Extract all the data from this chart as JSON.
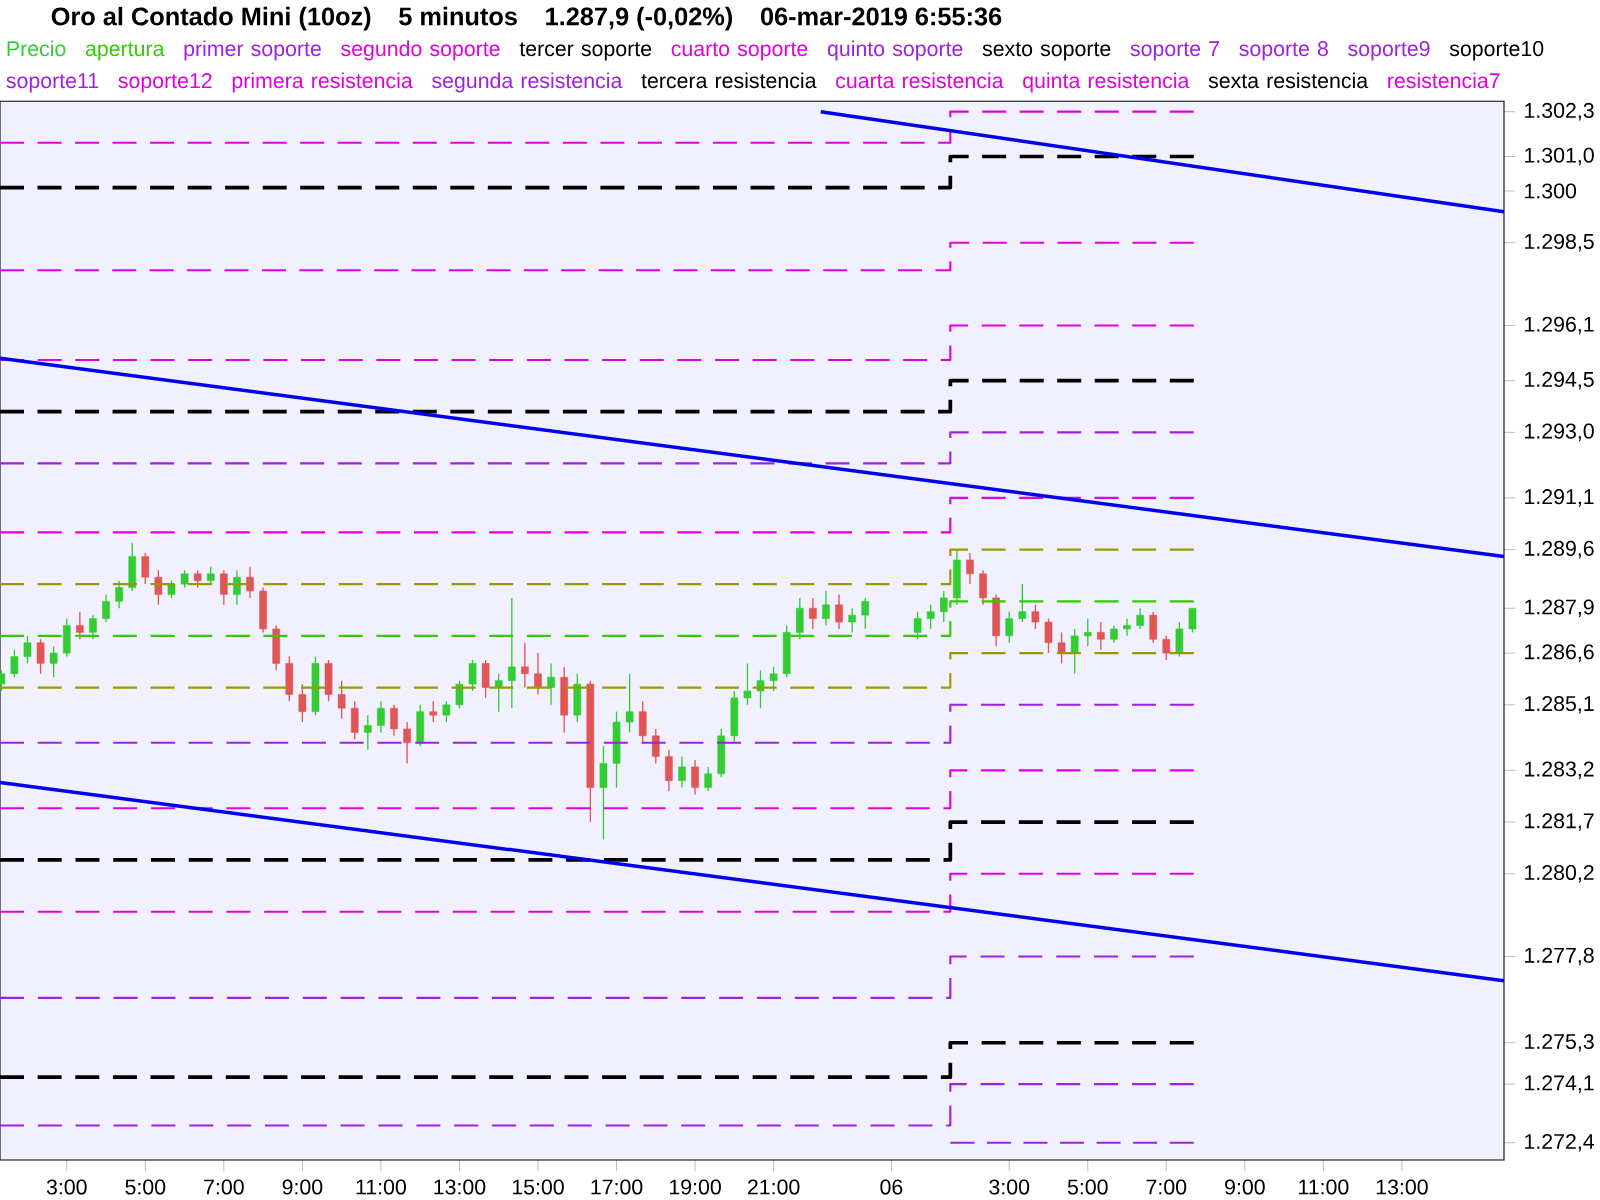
{
  "chart_data": {
    "type": "candlestick",
    "title": "Oro al Contado Mini (10oz)",
    "subtitle": "5 minutos",
    "annotations": [
      "1.287,9 (-0,02%)",
      "06-mar-2019 6:55:36"
    ],
    "xlim": [
      "2019-03-05T01:18",
      "2019-03-06T15:36"
    ],
    "ylim": [
      1271.9,
      1302.6
    ],
    "xticks": [
      {
        "value": "2019-03-05T03:00",
        "label": "3:00"
      },
      {
        "value": "2019-03-05T05:00",
        "label": "5:00"
      },
      {
        "value": "2019-03-05T07:00",
        "label": "7:00"
      },
      {
        "value": "2019-03-05T09:00",
        "label": "9:00"
      },
      {
        "value": "2019-03-05T11:00",
        "label": "11:00"
      },
      {
        "value": "2019-03-05T13:00",
        "label": "13:00"
      },
      {
        "value": "2019-03-05T15:00",
        "label": "15:00"
      },
      {
        "value": "2019-03-05T17:00",
        "label": "17:00"
      },
      {
        "value": "2019-03-05T19:00",
        "label": "19:00"
      },
      {
        "value": "2019-03-05T21:00",
        "label": "21:00"
      },
      {
        "value": "2019-03-06T00:00",
        "label": "06"
      },
      {
        "value": "2019-03-06T03:00",
        "label": "3:00"
      },
      {
        "value": "2019-03-06T05:00",
        "label": "5:00"
      },
      {
        "value": "2019-03-06T07:00",
        "label": "7:00"
      },
      {
        "value": "2019-03-06T09:00",
        "label": "9:00"
      },
      {
        "value": "2019-03-06T11:00",
        "label": "11:00"
      },
      {
        "value": "2019-03-06T13:00",
        "label": "13:00"
      }
    ],
    "yticks": [
      {
        "value": 1302.3,
        "label": "1.302,3"
      },
      {
        "value": 1301.0,
        "label": "1.301,0"
      },
      {
        "value": 1300,
        "label": "1.300"
      },
      {
        "value": 1298.5,
        "label": "1.298,5"
      },
      {
        "value": 1296.1,
        "label": "1.296,1"
      },
      {
        "value": 1294.5,
        "label": "1.294,5"
      },
      {
        "value": 1293.0,
        "label": "1.293,0"
      },
      {
        "value": 1291.1,
        "label": "1.291,1"
      },
      {
        "value": 1289.6,
        "label": "1.289,6"
      },
      {
        "value": 1287.9,
        "label": "1.287,9"
      },
      {
        "value": 1286.6,
        "label": "1.286,6"
      },
      {
        "value": 1285.1,
        "label": "1.285,1"
      },
      {
        "value": 1283.2,
        "label": "1.283,2"
      },
      {
        "value": 1281.7,
        "label": "1.281,7"
      },
      {
        "value": 1280.2,
        "label": "1.280,2"
      },
      {
        "value": 1277.8,
        "label": "1.277,8"
      },
      {
        "value": 1275.3,
        "label": "1.275,3"
      },
      {
        "value": 1274.1,
        "label": "1.274,1"
      },
      {
        "value": 1272.4,
        "label": "1.272,4"
      }
    ],
    "legend": "top",
    "marker": "none",
    "series": [
      {
        "name": "Precio",
        "color": "#33cc33",
        "colors": [
          "#33cc33",
          "#33cc33",
          "#33cc33",
          "#e05555",
          "#33cc33",
          "#33cc33",
          "#e05555",
          "#33cc33",
          "#33cc33",
          "#33cc33",
          "#33cc33",
          "#e05555",
          "#e05555",
          "#33cc33",
          "#33cc33",
          "#e05555",
          "#33cc33",
          "#e05555",
          "#33cc33",
          "#e05555",
          "#e05555",
          "#e05555",
          "#e05555",
          "#e05555",
          "#33cc33",
          "#e05555",
          "#e05555",
          "#e05555",
          "#33cc33",
          "#33cc33",
          "#e05555",
          "#e05555",
          "#33cc33",
          "#e05555",
          "#33cc33",
          "#33cc33",
          "#33cc33",
          "#e05555",
          "#33cc33",
          "#33cc33",
          "#e05555",
          "#e05555",
          "#33cc33",
          "#e05555",
          "#33cc33",
          "#e05555",
          "#33cc33",
          "#33cc33",
          "#33cc33",
          "#e05555",
          "#e05555",
          "#e05555",
          "#33cc33",
          "#e05555",
          "#33cc33",
          "#33cc33",
          "#33cc33",
          "#33cc33",
          "#33cc33",
          "#33cc33",
          "#33cc33",
          "#33cc33",
          "#e05555",
          "#33cc33",
          "#e05555",
          "#33cc33",
          "#33cc33",
          "#33cc33",
          "#33cc33",
          "#33cc33",
          "#33cc33",
          "#e05555",
          "#e05555",
          "#e05555",
          "#33cc33",
          "#33cc33",
          "#e05555",
          "#e05555",
          "#e05555",
          "#33cc33",
          "#33cc33",
          "#e05555",
          "#33cc33",
          "#33cc33",
          "#33cc33",
          "#e05555",
          "#e05555",
          "#33cc33",
          "#33cc33"
        ],
        "x": [
          "2019-03-05T01:20",
          "2019-03-05T01:40",
          "2019-03-05T02:00",
          "2019-03-05T02:20",
          "2019-03-05T02:40",
          "2019-03-05T03:00",
          "2019-03-05T03:20",
          "2019-03-05T03:40",
          "2019-03-05T04:00",
          "2019-03-05T04:20",
          "2019-03-05T04:40",
          "2019-03-05T05:00",
          "2019-03-05T05:20",
          "2019-03-05T05:40",
          "2019-03-05T06:00",
          "2019-03-05T06:20",
          "2019-03-05T06:40",
          "2019-03-05T07:00",
          "2019-03-05T07:20",
          "2019-03-05T07:40",
          "2019-03-05T08:00",
          "2019-03-05T08:20",
          "2019-03-05T08:40",
          "2019-03-05T09:00",
          "2019-03-05T09:20",
          "2019-03-05T09:40",
          "2019-03-05T10:00",
          "2019-03-05T10:20",
          "2019-03-05T10:40",
          "2019-03-05T11:00",
          "2019-03-05T11:20",
          "2019-03-05T11:40",
          "2019-03-05T12:00",
          "2019-03-05T12:20",
          "2019-03-05T12:40",
          "2019-03-05T13:00",
          "2019-03-05T13:20",
          "2019-03-05T13:40",
          "2019-03-05T14:00",
          "2019-03-05T14:20",
          "2019-03-05T14:40",
          "2019-03-05T15:00",
          "2019-03-05T15:20",
          "2019-03-05T15:40",
          "2019-03-05T16:00",
          "2019-03-05T16:20",
          "2019-03-05T16:40",
          "2019-03-05T17:00",
          "2019-03-05T17:20",
          "2019-03-05T17:40",
          "2019-03-05T18:00",
          "2019-03-05T18:20",
          "2019-03-05T18:40",
          "2019-03-05T19:00",
          "2019-03-05T19:20",
          "2019-03-05T19:40",
          "2019-03-05T20:00",
          "2019-03-05T20:20",
          "2019-03-05T20:40",
          "2019-03-05T21:00",
          "2019-03-05T21:20",
          "2019-03-05T21:40",
          "2019-03-05T22:00",
          "2019-03-05T22:20",
          "2019-03-05T22:40",
          "2019-03-05T23:00",
          "2019-03-05T23:20",
          "2019-03-06T00:40",
          "2019-03-06T01:00",
          "2019-03-06T01:20",
          "2019-03-06T01:40",
          "2019-03-06T02:00",
          "2019-03-06T02:20",
          "2019-03-06T02:40",
          "2019-03-06T03:00",
          "2019-03-06T03:20",
          "2019-03-06T03:40",
          "2019-03-06T04:00",
          "2019-03-06T04:20",
          "2019-03-06T04:40",
          "2019-03-06T05:00",
          "2019-03-06T05:20",
          "2019-03-06T05:40",
          "2019-03-06T06:00",
          "2019-03-06T06:20",
          "2019-03-06T06:40",
          "2019-03-06T07:00",
          "2019-03-06T07:20",
          "2019-03-06T07:40"
        ],
        "ohlc": [
          [
            1285.7,
            1286.1,
            1285.5,
            1286.0
          ],
          [
            1286.0,
            1286.7,
            1285.9,
            1286.5
          ],
          [
            1286.5,
            1287.1,
            1286.3,
            1286.9
          ],
          [
            1286.9,
            1287.0,
            1286.0,
            1286.3
          ],
          [
            1286.3,
            1286.8,
            1285.9,
            1286.6
          ],
          [
            1286.6,
            1287.6,
            1286.5,
            1287.4
          ],
          [
            1287.4,
            1287.8,
            1287.0,
            1287.2
          ],
          [
            1287.2,
            1287.7,
            1287.0,
            1287.6
          ],
          [
            1287.6,
            1288.3,
            1287.5,
            1288.1
          ],
          [
            1288.1,
            1288.7,
            1287.9,
            1288.5
          ],
          [
            1288.5,
            1289.8,
            1288.4,
            1289.4
          ],
          [
            1289.4,
            1289.5,
            1288.6,
            1288.8
          ],
          [
            1288.8,
            1289.0,
            1288.0,
            1288.3
          ],
          [
            1288.3,
            1288.7,
            1288.2,
            1288.6
          ],
          [
            1288.6,
            1289.0,
            1288.5,
            1288.9
          ],
          [
            1288.9,
            1289.0,
            1288.5,
            1288.7
          ],
          [
            1288.7,
            1289.1,
            1288.6,
            1288.9
          ],
          [
            1288.9,
            1289.0,
            1288.0,
            1288.3
          ],
          [
            1288.3,
            1289.0,
            1288.0,
            1288.8
          ],
          [
            1288.8,
            1289.1,
            1288.2,
            1288.4
          ],
          [
            1288.4,
            1288.5,
            1287.2,
            1287.3
          ],
          [
            1287.3,
            1287.4,
            1286.1,
            1286.3
          ],
          [
            1286.3,
            1286.5,
            1285.2,
            1285.4
          ],
          [
            1285.4,
            1285.7,
            1284.6,
            1284.9
          ],
          [
            1284.9,
            1286.5,
            1284.8,
            1286.3
          ],
          [
            1286.3,
            1286.4,
            1285.2,
            1285.4
          ],
          [
            1285.4,
            1285.8,
            1284.7,
            1285.0
          ],
          [
            1285.0,
            1285.2,
            1284.1,
            1284.3
          ],
          [
            1284.3,
            1284.8,
            1283.8,
            1284.5
          ],
          [
            1284.5,
            1285.2,
            1284.3,
            1285.0
          ],
          [
            1285.0,
            1285.1,
            1284.2,
            1284.4
          ],
          [
            1284.4,
            1284.6,
            1283.4,
            1284.0
          ],
          [
            1284.0,
            1285.1,
            1283.9,
            1284.9
          ],
          [
            1284.9,
            1285.2,
            1284.6,
            1284.8
          ],
          [
            1284.8,
            1285.2,
            1284.6,
            1285.1
          ],
          [
            1285.1,
            1285.8,
            1285.0,
            1285.7
          ],
          [
            1285.7,
            1286.4,
            1285.5,
            1286.3
          ],
          [
            1286.3,
            1286.4,
            1285.3,
            1285.6
          ],
          [
            1285.6,
            1286.0,
            1284.9,
            1285.8
          ],
          [
            1285.8,
            1288.2,
            1285.0,
            1286.2
          ],
          [
            1286.2,
            1286.9,
            1285.6,
            1286.0
          ],
          [
            1286.0,
            1286.6,
            1285.4,
            1285.6
          ],
          [
            1285.6,
            1286.3,
            1285.1,
            1285.9
          ],
          [
            1285.9,
            1286.2,
            1284.3,
            1284.8
          ],
          [
            1284.8,
            1286.0,
            1284.6,
            1285.7
          ],
          [
            1285.7,
            1285.8,
            1281.7,
            1282.7
          ],
          [
            1282.7,
            1283.9,
            1281.2,
            1283.4
          ],
          [
            1283.4,
            1284.9,
            1282.7,
            1284.6
          ],
          [
            1284.6,
            1286.0,
            1284.3,
            1284.9
          ],
          [
            1284.9,
            1285.2,
            1284.0,
            1284.2
          ],
          [
            1284.2,
            1284.4,
            1283.4,
            1283.6
          ],
          [
            1283.6,
            1283.8,
            1282.6,
            1282.9
          ],
          [
            1282.9,
            1283.6,
            1282.7,
            1283.3
          ],
          [
            1283.3,
            1283.5,
            1282.5,
            1282.7
          ],
          [
            1282.7,
            1283.3,
            1282.6,
            1283.1
          ],
          [
            1283.1,
            1284.4,
            1283.0,
            1284.2
          ],
          [
            1284.2,
            1285.5,
            1284.0,
            1285.3
          ],
          [
            1285.3,
            1286.3,
            1285.1,
            1285.5
          ],
          [
            1285.5,
            1286.1,
            1285.0,
            1285.8
          ],
          [
            1285.8,
            1286.2,
            1285.5,
            1286.0
          ],
          [
            1286.0,
            1287.4,
            1285.9,
            1287.2
          ],
          [
            1287.2,
            1288.2,
            1287.0,
            1287.9
          ],
          [
            1287.9,
            1288.2,
            1287.3,
            1287.6
          ],
          [
            1287.6,
            1288.4,
            1287.4,
            1288.0
          ],
          [
            1288.0,
            1288.3,
            1287.3,
            1287.5
          ],
          [
            1287.5,
            1287.9,
            1287.2,
            1287.7
          ],
          [
            1287.7,
            1288.2,
            1287.3,
            1288.1
          ],
          [
            1287.2,
            1287.8,
            1287.0,
            1287.6
          ],
          [
            1287.6,
            1288.0,
            1287.3,
            1287.8
          ],
          [
            1287.8,
            1288.4,
            1287.5,
            1288.2
          ],
          [
            1288.2,
            1289.6,
            1288.0,
            1289.3
          ],
          [
            1289.3,
            1289.5,
            1288.6,
            1288.9
          ],
          [
            1288.9,
            1289.0,
            1288.0,
            1288.2
          ],
          [
            1288.2,
            1288.3,
            1286.8,
            1287.1
          ],
          [
            1287.1,
            1287.8,
            1286.9,
            1287.6
          ],
          [
            1287.6,
            1288.6,
            1287.5,
            1287.8
          ],
          [
            1287.8,
            1288.0,
            1287.3,
            1287.5
          ],
          [
            1287.5,
            1287.6,
            1286.6,
            1286.9
          ],
          [
            1286.9,
            1287.2,
            1286.3,
            1286.6
          ],
          [
            1286.6,
            1287.3,
            1286.0,
            1287.1
          ],
          [
            1287.1,
            1287.6,
            1286.8,
            1287.2
          ],
          [
            1287.2,
            1287.5,
            1286.7,
            1287.0
          ],
          [
            1287.0,
            1287.4,
            1286.9,
            1287.3
          ],
          [
            1287.3,
            1287.6,
            1287.1,
            1287.4
          ],
          [
            1287.4,
            1287.9,
            1287.3,
            1287.7
          ],
          [
            1287.7,
            1287.8,
            1286.9,
            1287.0
          ],
          [
            1287.0,
            1287.1,
            1286.4,
            1286.6
          ],
          [
            1286.6,
            1287.5,
            1286.5,
            1287.3
          ],
          [
            1287.3,
            1287.9,
            1287.2,
            1287.9
          ]
        ]
      },
      {
        "name": "apertura",
        "type": "step",
        "color": "#33cc00",
        "line_style": "dashed",
        "x": [
          "2019-03-05T01:18",
          "2019-03-06T01:30",
          "2019-03-06T07:42"
        ],
        "values": [
          1287.1,
          1288.1,
          1288.1
        ]
      },
      {
        "name": "primer soporte",
        "type": "step",
        "color": "#a020e0",
        "line_style": "dashed",
        "x": [
          "2019-03-05T01:18",
          "2019-03-06T01:30",
          "2019-03-06T07:42"
        ],
        "values": [
          1284.0,
          1285.1,
          1285.1
        ]
      },
      {
        "name": "segundo soporte",
        "type": "step",
        "color": "#e000e0",
        "line_style": "dashed",
        "x": [
          "2019-03-05T01:18",
          "2019-03-06T01:30",
          "2019-03-06T07:42"
        ],
        "values": [
          1282.1,
          1283.2,
          1283.2
        ]
      },
      {
        "name": "tercer soporte",
        "type": "step",
        "color": "#000000",
        "line_style": "dashed",
        "x": [
          "2019-03-05T01:18",
          "2019-03-06T01:30",
          "2019-03-06T07:42"
        ],
        "values": [
          1280.6,
          1281.7,
          1281.7
        ]
      },
      {
        "name": "cuarto soporte",
        "type": "step",
        "color": "#e000e0",
        "line_style": "dashed",
        "x": [
          "2019-03-05T01:18",
          "2019-03-06T01:30",
          "2019-03-06T07:42"
        ],
        "values": [
          1279.1,
          1280.2,
          1280.2
        ]
      },
      {
        "name": "quinto soporte",
        "type": "step",
        "color": "#a020e0",
        "line_style": "dashed",
        "x": [
          "2019-03-05T01:18",
          "2019-03-06T01:30",
          "2019-03-06T07:42"
        ],
        "values": [
          1276.6,
          1277.8,
          1277.8
        ]
      },
      {
        "name": "sexto soporte",
        "type": "step",
        "color": "#000000",
        "line_style": "dashed",
        "x": [
          "2019-03-05T01:18",
          "2019-03-06T01:30",
          "2019-03-06T07:42"
        ],
        "values": [
          1274.3,
          1275.3,
          1275.3
        ]
      },
      {
        "name": "soporte 7",
        "type": "step",
        "color": "#a020e0",
        "line_style": "dashed",
        "x": [
          "2019-03-05T01:18",
          "2019-03-06T01:30",
          "2019-03-06T07:42"
        ],
        "values": [
          1272.9,
          1274.1,
          1274.1
        ]
      },
      {
        "name": "soporte 8",
        "type": "step",
        "color": "#a020e0",
        "line_style": "dashed",
        "x": [
          "2019-03-06T01:30",
          "2019-03-06T07:42"
        ],
        "values": [
          1272.4,
          1272.4
        ]
      },
      {
        "name": "soporte9",
        "type": "step",
        "color": "#a020e0"
      },
      {
        "name": "soporte10",
        "type": "step",
        "color": "#000000"
      },
      {
        "name": "soporte11",
        "type": "step",
        "color": "#a020e0"
      },
      {
        "name": "soporte12",
        "type": "step",
        "color": "#e000e0"
      },
      {
        "name": "primera resistencia",
        "type": "step",
        "color": "#e000e0",
        "line_style": "dashed",
        "x": [
          "2019-03-05T01:18",
          "2019-03-06T01:30",
          "2019-03-06T07:42"
        ],
        "values": [
          1290.1,
          1291.1,
          1291.1
        ]
      },
      {
        "name": "segunda resistencia",
        "type": "step",
        "color": "#a020e0",
        "line_style": "dashed",
        "x": [
          "2019-03-05T01:18",
          "2019-03-06T01:30",
          "2019-03-06T07:42"
        ],
        "values": [
          1292.1,
          1293.0,
          1293.0
        ]
      },
      {
        "name": "tercera resistencia",
        "type": "step",
        "color": "#000000",
        "line_style": "dashed",
        "x": [
          "2019-03-05T01:18",
          "2019-03-06T01:30",
          "2019-03-06T07:42"
        ],
        "values": [
          1293.6,
          1294.5,
          1294.5
        ]
      },
      {
        "name": "cuarta resistencia",
        "type": "step",
        "color": "#e000e0",
        "line_style": "dashed",
        "x": [
          "2019-03-05T01:18",
          "2019-03-06T01:30",
          "2019-03-06T07:42"
        ],
        "values": [
          1295.1,
          1296.1,
          1296.1
        ]
      },
      {
        "name": "quinta resistencia",
        "type": "step",
        "color": "#e000e0",
        "line_style": "dashed",
        "x": [
          "2019-03-05T01:18",
          "2019-03-06T01:30",
          "2019-03-06T07:42"
        ],
        "values": [
          1297.7,
          1298.5,
          1298.5
        ]
      },
      {
        "name": "sexta resistencia",
        "type": "step",
        "color": "#000000",
        "line_style": "dashed",
        "x": [
          "2019-03-05T01:18",
          "2019-03-06T01:30",
          "2019-03-06T07:42"
        ],
        "values": [
          1300.1,
          1301.0,
          1301.0
        ]
      },
      {
        "name": "resistencia7",
        "type": "step",
        "color": "#e000e0",
        "line_style": "dashed",
        "x": [
          "2019-03-05T01:18",
          "2019-03-06T01:30",
          "2019-03-06T07:42"
        ],
        "values": [
          1301.4,
          1302.3,
          1302.3
        ]
      },
      {
        "type": "step",
        "color": "#999900",
        "line_style": "dashed",
        "x": [
          "2019-03-05T01:18",
          "2019-03-06T01:30",
          "2019-03-06T07:42"
        ],
        "values": [
          1288.6,
          1289.6,
          1289.6
        ]
      },
      {
        "type": "step",
        "color": "#999900",
        "line_style": "dashed",
        "x": [
          "2019-03-05T01:18",
          "2019-03-06T01:30",
          "2019-03-06T07:42"
        ],
        "values": [
          1285.6,
          1286.6,
          1286.6
        ]
      },
      {
        "type": "line",
        "color": "#0000ee",
        "line_style": "solid",
        "x": [
          "2019-03-05T22:12",
          "2019-03-06T15:36"
        ],
        "values": [
          1302.3,
          1299.4
        ]
      },
      {
        "type": "line",
        "color": "#0000ee",
        "line_style": "solid",
        "x": [
          "2019-03-05T01:18",
          "2019-03-06T15:36"
        ],
        "values": [
          1295.15,
          1289.4
        ]
      },
      {
        "type": "line",
        "color": "#0000ee",
        "line_style": "solid",
        "x": [
          "2019-03-05T01:18",
          "2019-03-06T15:36"
        ],
        "values": [
          1282.85,
          1277.1
        ]
      }
    ]
  }
}
